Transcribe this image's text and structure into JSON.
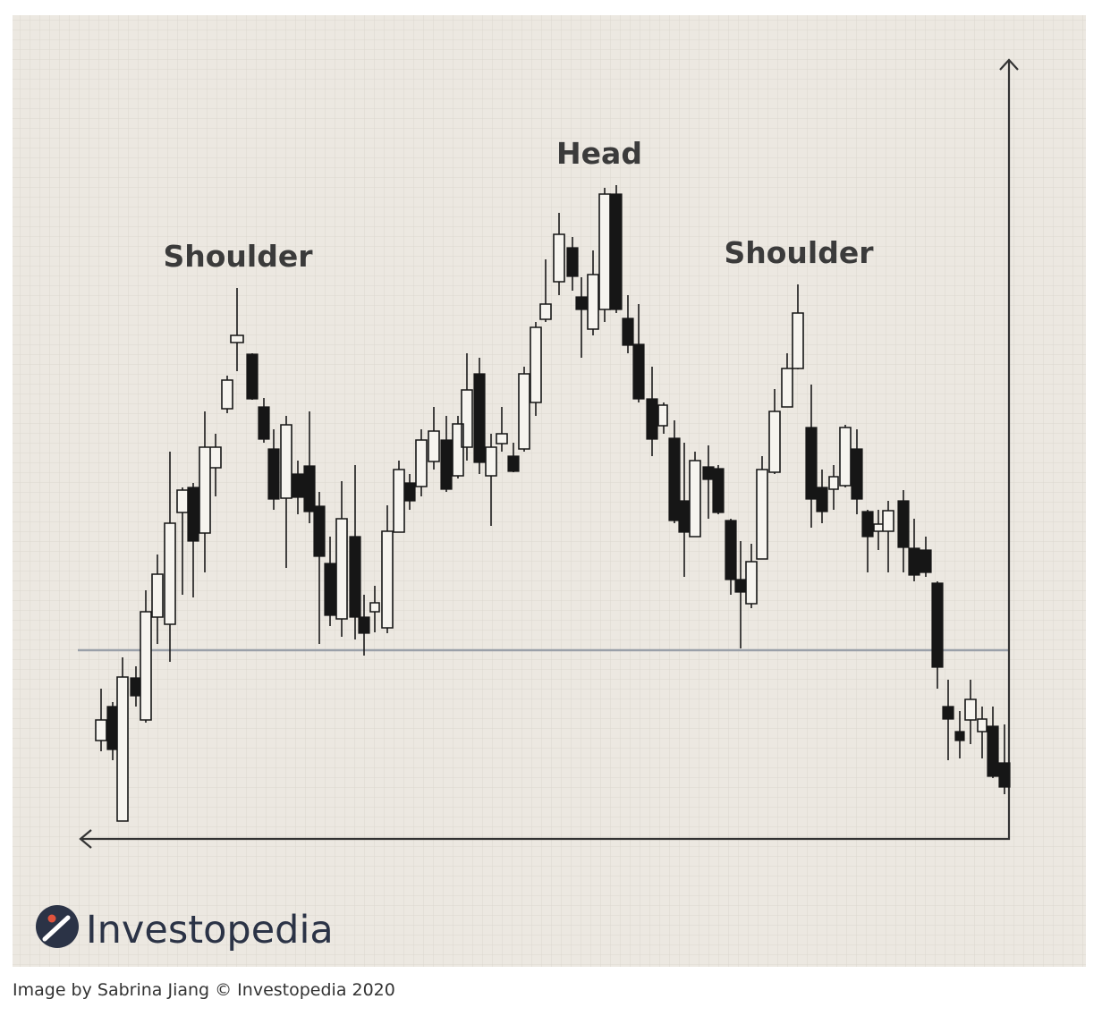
{
  "labels": {
    "left_shoulder": "Shoulder",
    "head": "Head",
    "right_shoulder": "Shoulder"
  },
  "logo": {
    "text": "Investopedia"
  },
  "caption": "Image by Sabrina Jiang © Investopedia 2020"
}
